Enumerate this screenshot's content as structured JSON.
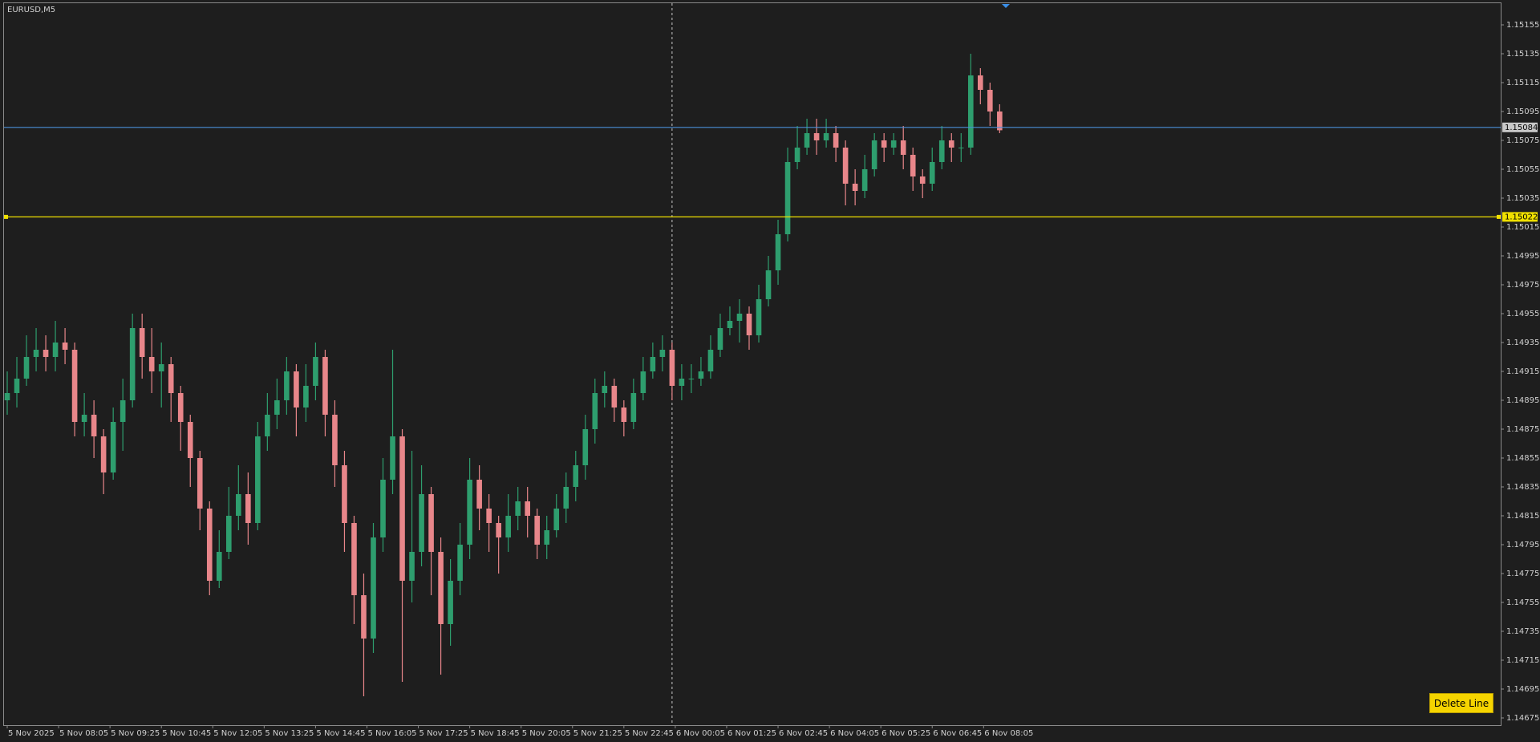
{
  "chart_data": {
    "type": "candlestick",
    "title": "EURUSD,M5",
    "up_color": "#2e9e6e",
    "down_color": "#e8868a",
    "grid": false,
    "ylim": [
      1.1467,
      1.1517
    ],
    "yticks": [
      1.15155,
      1.15135,
      1.15115,
      1.15095,
      1.15075,
      1.15055,
      1.15035,
      1.15015,
      1.14995,
      1.14975,
      1.14955,
      1.14935,
      1.14915,
      1.14895,
      1.14875,
      1.14855,
      1.14835,
      1.14815,
      1.14795,
      1.14775,
      1.14755,
      1.14735,
      1.14715,
      1.14695,
      1.14675
    ],
    "xlim": [
      -1,
      465
    ],
    "xticks": [
      {
        "value": 0,
        "label": "5 Nov 2025"
      },
      {
        "value": 16,
        "label": "5 Nov 08:05"
      },
      {
        "value": 32,
        "label": "5 Nov 09:25"
      },
      {
        "value": 48,
        "label": "5 Nov 10:45"
      },
      {
        "value": 64,
        "label": "5 Nov 12:05"
      },
      {
        "value": 80,
        "label": "5 Nov 13:25"
      },
      {
        "value": 96,
        "label": "5 Nov 14:45"
      },
      {
        "value": 112,
        "label": "5 Nov 16:05"
      },
      {
        "value": 128,
        "label": "5 Nov 17:25"
      },
      {
        "value": 144,
        "label": "5 Nov 18:45"
      },
      {
        "value": 160,
        "label": "5 Nov 20:05"
      },
      {
        "value": 176,
        "label": "5 Nov 21:25"
      },
      {
        "value": 192,
        "label": "5 Nov 22:45"
      },
      {
        "value": 208,
        "label": "6 Nov 00:05"
      },
      {
        "value": 224,
        "label": "6 Nov 01:25"
      },
      {
        "value": 240,
        "label": "6 Nov 02:45"
      },
      {
        "value": 256,
        "label": "6 Nov 04:05"
      },
      {
        "value": 272,
        "label": "6 Nov 05:25"
      },
      {
        "value": 288,
        "label": "6 Nov 06:45"
      },
      {
        "value": 304,
        "label": "6 Nov 08:05"
      }
    ],
    "day_separator": 207,
    "hlines": [
      {
        "value": 1.15084,
        "color": "#4a8fd8",
        "label_bg": "#c8c8c8"
      },
      {
        "value": 1.15022,
        "color": "#f0e000",
        "label_bg": "#f0e000"
      }
    ],
    "x": [
      0,
      3,
      6,
      9,
      12,
      15,
      18,
      21,
      24,
      27,
      30,
      33,
      36,
      39,
      42,
      45,
      48,
      51,
      54,
      57,
      60,
      63,
      66,
      69,
      72,
      75,
      78,
      81,
      84,
      87,
      90,
      93,
      96,
      99,
      102,
      105,
      108,
      111,
      114,
      117,
      120,
      123,
      126,
      129,
      132,
      135,
      138,
      141,
      144,
      147,
      150,
      153,
      156,
      159,
      162,
      165,
      168,
      171,
      174,
      177,
      180,
      183,
      186,
      189,
      192,
      195,
      198,
      201,
      204,
      207,
      210,
      213,
      216,
      219,
      222,
      225,
      228,
      231,
      234,
      237,
      240,
      243,
      246,
      249,
      252,
      255,
      258,
      261,
      264,
      267,
      270,
      273,
      276,
      279,
      282,
      285,
      288,
      291,
      294,
      297,
      300,
      303,
      306,
      309
    ],
    "open": [
      1.14895,
      1.149,
      1.1491,
      1.14925,
      1.1493,
      1.14925,
      1.14935,
      1.1493,
      1.1488,
      1.14885,
      1.1487,
      1.14845,
      1.1488,
      1.14895,
      1.14945,
      1.14925,
      1.14915,
      1.1492,
      1.149,
      1.1488,
      1.14855,
      1.1482,
      1.1477,
      1.1479,
      1.14815,
      1.1483,
      1.1481,
      1.1487,
      1.14885,
      1.14895,
      1.14915,
      1.1489,
      1.14905,
      1.14925,
      1.14885,
      1.1485,
      1.1481,
      1.1476,
      1.1473,
      1.148,
      1.1484,
      1.1487,
      1.1477,
      1.1479,
      1.1483,
      1.1479,
      1.1474,
      1.1477,
      1.14795,
      1.1484,
      1.1482,
      1.1481,
      1.148,
      1.14815,
      1.14825,
      1.14815,
      1.14795,
      1.14805,
      1.1482,
      1.14835,
      1.1485,
      1.14875,
      1.149,
      1.14905,
      1.1489,
      1.1488,
      1.149,
      1.14915,
      1.14925,
      1.1493,
      1.14905,
      1.1491,
      1.1491,
      1.14915,
      1.1493,
      1.14945,
      1.1495,
      1.14955,
      1.1494,
      1.14965,
      1.14985,
      1.1501,
      1.1506,
      1.1507,
      1.1508,
      1.15075,
      1.1508,
      1.1507,
      1.15045,
      1.1504,
      1.15055,
      1.15075,
      1.1507,
      1.15075,
      1.15065,
      1.1505,
      1.15045,
      1.1506,
      1.15075,
      1.1507,
      1.1507,
      1.1512,
      1.1511,
      1.15095
    ],
    "high": [
      1.14915,
      1.14925,
      1.1494,
      1.14945,
      1.1494,
      1.1495,
      1.14945,
      1.14935,
      1.149,
      1.14895,
      1.14875,
      1.1489,
      1.1491,
      1.14955,
      1.14955,
      1.14945,
      1.14935,
      1.14925,
      1.14905,
      1.14885,
      1.1486,
      1.14825,
      1.14805,
      1.14835,
      1.1485,
      1.14845,
      1.1488,
      1.149,
      1.1491,
      1.14925,
      1.1492,
      1.1492,
      1.14935,
      1.1493,
      1.14895,
      1.1486,
      1.14815,
      1.14775,
      1.1481,
      1.14855,
      1.1493,
      1.14875,
      1.1486,
      1.1485,
      1.14835,
      1.148,
      1.14785,
      1.1481,
      1.14855,
      1.1485,
      1.1483,
      1.14815,
      1.1483,
      1.14835,
      1.14835,
      1.1482,
      1.14815,
      1.1483,
      1.14845,
      1.1486,
      1.14885,
      1.1491,
      1.14915,
      1.1491,
      1.14895,
      1.1491,
      1.14925,
      1.14935,
      1.1494,
      1.14935,
      1.1492,
      1.1492,
      1.14925,
      1.1494,
      1.14955,
      1.1496,
      1.14965,
      1.1496,
      1.14975,
      1.14995,
      1.1502,
      1.1507,
      1.15085,
      1.1509,
      1.1509,
      1.1509,
      1.15085,
      1.15075,
      1.15055,
      1.15065,
      1.1508,
      1.1508,
      1.1508,
      1.15085,
      1.1507,
      1.15055,
      1.1507,
      1.15085,
      1.1508,
      1.1508,
      1.15135,
      1.15125,
      1.15115,
      1.151
    ],
    "low": [
      1.14885,
      1.1489,
      1.14905,
      1.14915,
      1.14915,
      1.14915,
      1.1492,
      1.1487,
      1.1487,
      1.14855,
      1.1483,
      1.1484,
      1.1486,
      1.1489,
      1.1491,
      1.149,
      1.1489,
      1.1488,
      1.1486,
      1.14835,
      1.14805,
      1.1476,
      1.14765,
      1.14785,
      1.14805,
      1.14795,
      1.14805,
      1.1486,
      1.14875,
      1.14885,
      1.1487,
      1.1488,
      1.14895,
      1.1487,
      1.14835,
      1.1479,
      1.1474,
      1.1469,
      1.1472,
      1.1479,
      1.1483,
      1.147,
      1.14755,
      1.1478,
      1.1476,
      1.14705,
      1.14725,
      1.1476,
      1.14785,
      1.14805,
      1.1479,
      1.14775,
      1.1479,
      1.14805,
      1.148,
      1.14785,
      1.14785,
      1.148,
      1.1481,
      1.14825,
      1.1484,
      1.14865,
      1.1489,
      1.1488,
      1.1487,
      1.14875,
      1.14895,
      1.1491,
      1.14915,
      1.14895,
      1.14895,
      1.149,
      1.14905,
      1.1491,
      1.14925,
      1.1494,
      1.14935,
      1.1493,
      1.14935,
      1.1496,
      1.14975,
      1.15005,
      1.15055,
      1.15065,
      1.15065,
      1.1507,
      1.1506,
      1.1503,
      1.1503,
      1.15035,
      1.1505,
      1.1506,
      1.15065,
      1.15055,
      1.1504,
      1.15035,
      1.1504,
      1.15055,
      1.1506,
      1.1506,
      1.15065,
      1.151,
      1.15085,
      1.1508
    ],
    "close": [
      1.149,
      1.1491,
      1.14925,
      1.1493,
      1.14925,
      1.14935,
      1.1493,
      1.1488,
      1.14885,
      1.1487,
      1.14845,
      1.1488,
      1.14895,
      1.14945,
      1.14925,
      1.14915,
      1.1492,
      1.149,
      1.1488,
      1.14855,
      1.1482,
      1.1477,
      1.1479,
      1.14815,
      1.1483,
      1.1481,
      1.1487,
      1.14885,
      1.14895,
      1.14915,
      1.1489,
      1.14905,
      1.14925,
      1.14885,
      1.1485,
      1.1481,
      1.1476,
      1.1473,
      1.148,
      1.1484,
      1.1487,
      1.1477,
      1.1479,
      1.1483,
      1.1479,
      1.1474,
      1.1477,
      1.14795,
      1.1484,
      1.1482,
      1.1481,
      1.148,
      1.14815,
      1.14825,
      1.14815,
      1.14795,
      1.14805,
      1.1482,
      1.14835,
      1.1485,
      1.14875,
      1.149,
      1.14905,
      1.1489,
      1.1488,
      1.149,
      1.14915,
      1.14925,
      1.1493,
      1.14905,
      1.1491,
      1.1491,
      1.14915,
      1.1493,
      1.14945,
      1.1495,
      1.14955,
      1.1494,
      1.14965,
      1.14985,
      1.1501,
      1.1506,
      1.1507,
      1.1508,
      1.15075,
      1.1508,
      1.1507,
      1.15045,
      1.1504,
      1.15055,
      1.15075,
      1.1507,
      1.15075,
      1.15065,
      1.1505,
      1.15045,
      1.1506,
      1.15075,
      1.1507,
      1.1507,
      1.1512,
      1.1511,
      1.15095,
      1.15082
    ]
  },
  "button": "Delete Line"
}
